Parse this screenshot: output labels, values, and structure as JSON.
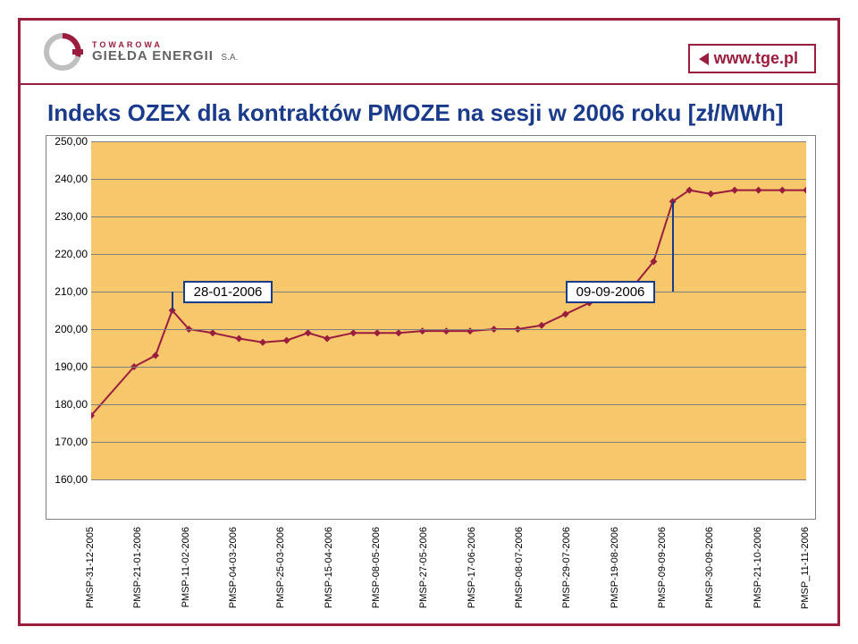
{
  "brand": {
    "small": "TOWAROWA",
    "big": "GIEŁDA ENERGII",
    "suffix": "S.A.",
    "url": "www.tge.pl",
    "accent": "#9a1d3e",
    "text_color": "#646464"
  },
  "chart": {
    "title": "Indeks OZEX dla kontraktów PMOZE na sesji w 2006 roku [zł/MWh]",
    "title_color": "#1a3a8a",
    "type": "line",
    "background_color": "#ffffff",
    "plot_background": "#f7c76b",
    "grid_color": "#808080",
    "line_color": "#9a1d3e",
    "marker_shape": "diamond",
    "marker_size": 8,
    "line_width": 2,
    "ylim": [
      160,
      250
    ],
    "ytick_step": 10,
    "y_ticks": [
      "160,00",
      "170,00",
      "180,00",
      "190,00",
      "200,00",
      "210,00",
      "220,00",
      "230,00",
      "240,00",
      "250,00"
    ],
    "x_categories": [
      "PMSP-31-12-2005",
      "PMSP-21-01-2006",
      "PMSP-11-02-2006",
      "PMSP-04-03-2006",
      "PMSP-25-03-2006",
      "PMSP-15-04-2006",
      "PMSP-08-05-2006",
      "PMSP-27-05-2006",
      "PMSP-17-06-2006",
      "PMSP-08-07-2006",
      "PMSP-29-07-2006",
      "PMSP-19-08-2006",
      "PMSP-09-09-2006",
      "PMSP-30-09-2006",
      "PMSP-21-10-2006",
      "PMSP_11-11-2006"
    ],
    "points": [
      {
        "x": 0.0,
        "y": 177.0
      },
      {
        "x": 0.9,
        "y": 190.0
      },
      {
        "x": 1.35,
        "y": 193.0
      },
      {
        "x": 1.7,
        "y": 205.0
      },
      {
        "x": 2.05,
        "y": 200.0
      },
      {
        "x": 2.55,
        "y": 199.0
      },
      {
        "x": 3.1,
        "y": 197.5
      },
      {
        "x": 3.6,
        "y": 196.5
      },
      {
        "x": 4.1,
        "y": 197.0
      },
      {
        "x": 4.55,
        "y": 199.0
      },
      {
        "x": 4.95,
        "y": 197.5
      },
      {
        "x": 5.5,
        "y": 199.0
      },
      {
        "x": 6.0,
        "y": 199.0
      },
      {
        "x": 6.45,
        "y": 199.0
      },
      {
        "x": 6.95,
        "y": 199.5
      },
      {
        "x": 7.45,
        "y": 199.5
      },
      {
        "x": 7.95,
        "y": 199.5
      },
      {
        "x": 8.45,
        "y": 200.0
      },
      {
        "x": 8.95,
        "y": 200.0
      },
      {
        "x": 9.45,
        "y": 201.0
      },
      {
        "x": 9.95,
        "y": 204.0
      },
      {
        "x": 10.45,
        "y": 207.0
      },
      {
        "x": 10.95,
        "y": 210.0
      },
      {
        "x": 11.35,
        "y": 211.0
      },
      {
        "x": 11.8,
        "y": 218.0
      },
      {
        "x": 12.2,
        "y": 234.0
      },
      {
        "x": 12.55,
        "y": 237.0
      },
      {
        "x": 13.0,
        "y": 236.0
      },
      {
        "x": 13.5,
        "y": 237.0
      },
      {
        "x": 14.0,
        "y": 237.0
      },
      {
        "x": 14.5,
        "y": 237.0
      },
      {
        "x": 15.0,
        "y": 237.0
      }
    ],
    "callouts": [
      {
        "label": "28-01-2006",
        "target_point_index": 3,
        "box_side": "left"
      },
      {
        "label": "09-09-2006",
        "target_point_index": 25,
        "box_side": "right"
      }
    ]
  }
}
